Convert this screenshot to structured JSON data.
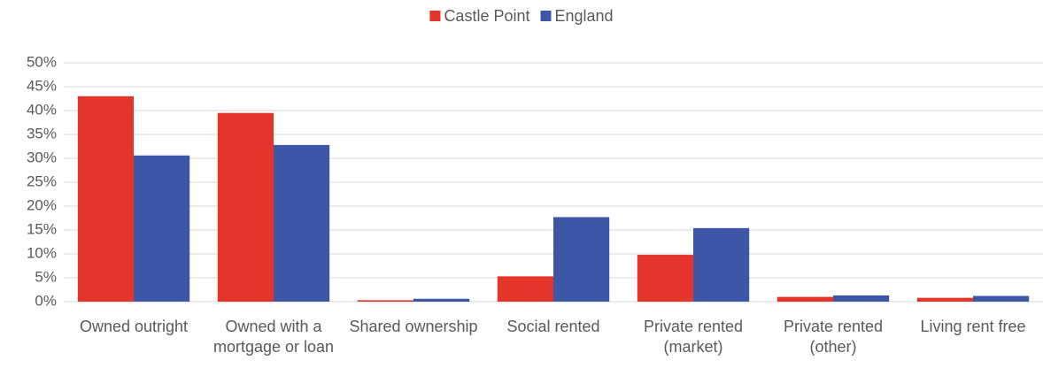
{
  "chart_data": {
    "type": "bar",
    "categories": [
      "Owned outright",
      "Owned with a mortgage or loan",
      "Shared ownership",
      "Social rented",
      "Private rented (market)",
      "Private rented (other)",
      "Living rent free"
    ],
    "series": [
      {
        "name": "Castle Point",
        "color": "#e5352a",
        "values": [
          43.0,
          39.5,
          0.3,
          5.3,
          9.8,
          1.0,
          0.8
        ]
      },
      {
        "name": "England",
        "color": "#3d57a6",
        "values": [
          30.6,
          32.8,
          0.6,
          17.7,
          15.4,
          1.3,
          1.2
        ]
      }
    ],
    "ylim": [
      0,
      50
    ],
    "yticks": [
      {
        "value": 0,
        "label": "0%"
      },
      {
        "value": 5,
        "label": "5%"
      },
      {
        "value": 10,
        "label": "10%"
      },
      {
        "value": 15,
        "label": "15%"
      },
      {
        "value": 20,
        "label": "20%"
      },
      {
        "value": 25,
        "label": "25%"
      },
      {
        "value": 30,
        "label": "30%"
      },
      {
        "value": 35,
        "label": "35%"
      },
      {
        "value": 40,
        "label": "40%"
      },
      {
        "value": 45,
        "label": "45%"
      },
      {
        "value": 50,
        "label": "50%"
      }
    ],
    "grid": true,
    "legend": "top"
  }
}
